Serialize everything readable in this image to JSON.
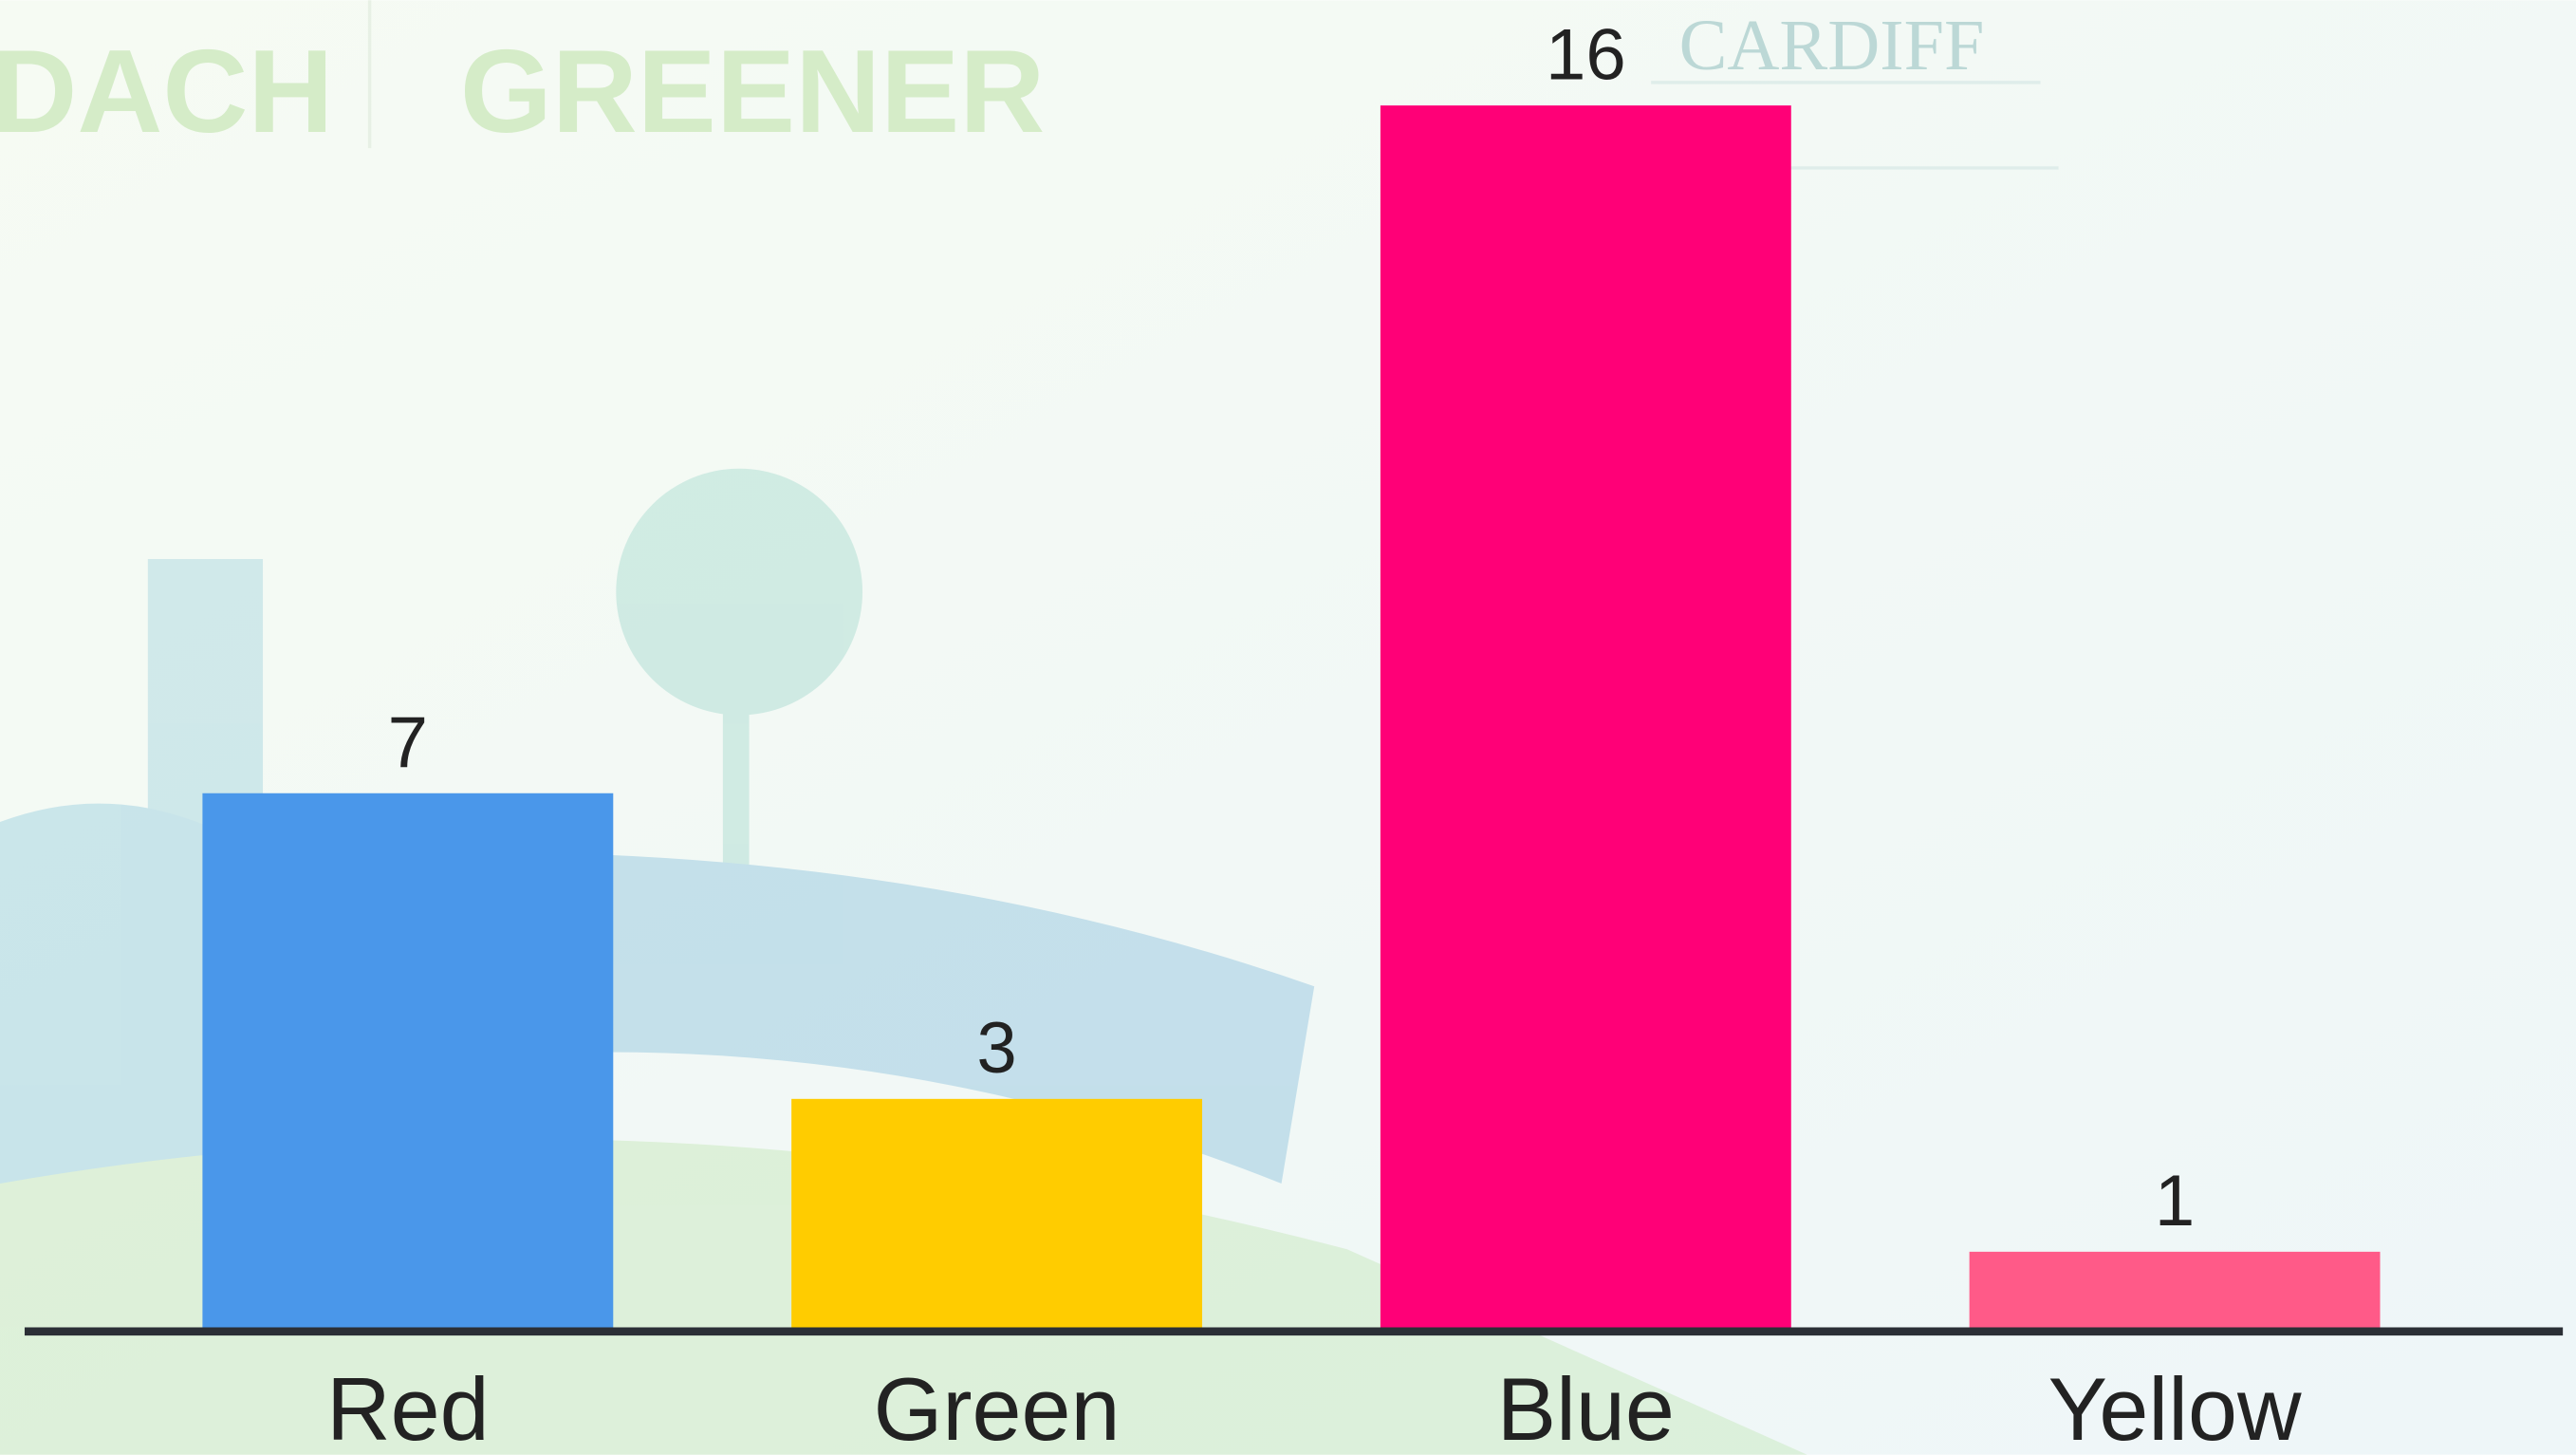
{
  "chart_data": {
    "type": "bar",
    "categories": [
      "Red",
      "Green",
      "Blue",
      "Yellow"
    ],
    "values": [
      7,
      3,
      16,
      1
    ],
    "colors": [
      "#4a97ea",
      "#ffcc00",
      "#ff0077",
      "#ff5a88"
    ],
    "watermark": [
      "DACH",
      "GREENER",
      "CARDIFF"
    ]
  }
}
